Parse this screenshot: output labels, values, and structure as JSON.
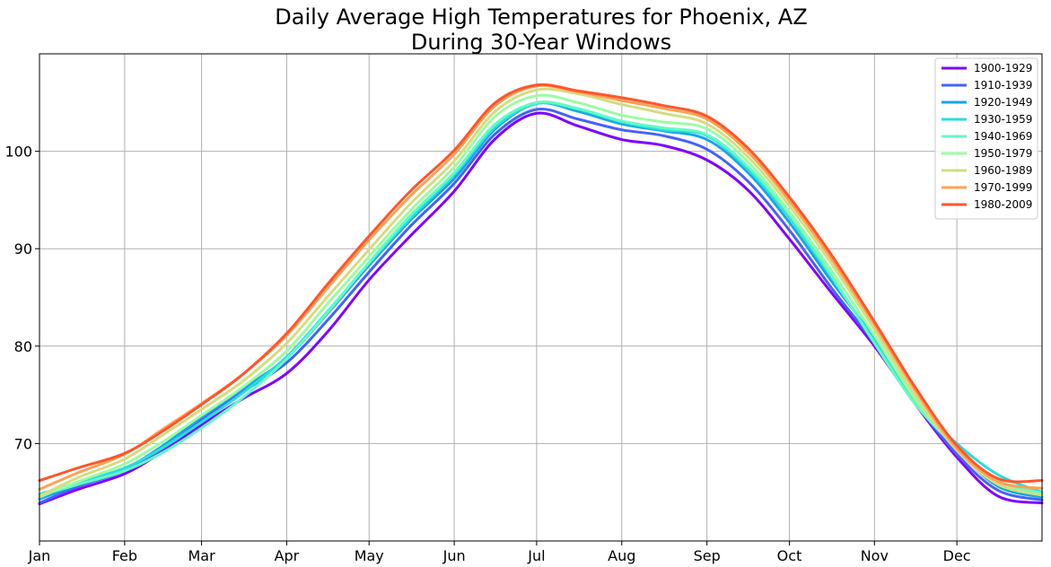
{
  "chart_data": {
    "type": "line",
    "title_lines": [
      "Daily Average High Temperatures for Phoenix, AZ",
      "During 30-Year Windows"
    ],
    "xlabel": "",
    "ylabel": "",
    "x_unit": "day of year",
    "xlim": [
      1,
      366
    ],
    "ylim": [
      60,
      110
    ],
    "x_ticks": [
      {
        "label": "Jan",
        "day": 1
      },
      {
        "label": "Feb",
        "day": 32
      },
      {
        "label": "Mar",
        "day": 60
      },
      {
        "label": "Apr",
        "day": 91
      },
      {
        "label": "May",
        "day": 121
      },
      {
        "label": "Jun",
        "day": 152
      },
      {
        "label": "Jul",
        "day": 182
      },
      {
        "label": "Aug",
        "day": 213
      },
      {
        "label": "Sep",
        "day": 244
      },
      {
        "label": "Oct",
        "day": 274
      },
      {
        "label": "Nov",
        "day": 305
      },
      {
        "label": "Dec",
        "day": 335
      }
    ],
    "y_ticks": [
      70,
      80,
      90,
      100
    ],
    "grid": true,
    "legend_position": "top-right",
    "x": [
      1,
      15,
      32,
      46,
      60,
      75,
      91,
      106,
      121,
      136,
      152,
      167,
      182,
      197,
      213,
      228,
      244,
      259,
      274,
      289,
      305,
      320,
      335,
      350,
      366
    ],
    "series": [
      {
        "name": "1900-1929",
        "color": "#7f00ff",
        "values": [
          63.8,
          65.3,
          66.9,
          69.2,
          71.9,
          74.6,
          77.2,
          81.5,
          86.8,
          91.3,
          95.9,
          101.3,
          103.9,
          102.6,
          101.2,
          100.6,
          99.1,
          96.0,
          91.0,
          85.6,
          80.0,
          74.0,
          68.6,
          64.6,
          63.9
        ]
      },
      {
        "name": "1910-1939",
        "color": "#4562fa",
        "values": [
          63.9,
          65.6,
          67.2,
          69.5,
          72.4,
          75.3,
          78.3,
          82.7,
          87.6,
          92.3,
          96.7,
          101.8,
          104.3,
          103.3,
          102.2,
          101.6,
          100.2,
          96.9,
          91.9,
          86.1,
          80.3,
          74.2,
          68.9,
          65.2,
          64.2
        ]
      },
      {
        "name": "1920-1949",
        "color": "#18a4e8",
        "values": [
          64.3,
          65.8,
          67.4,
          69.8,
          72.7,
          75.6,
          78.8,
          83.4,
          88.3,
          92.9,
          97.2,
          102.3,
          104.9,
          104.1,
          102.8,
          102.1,
          101.2,
          97.8,
          92.7,
          86.8,
          80.8,
          74.4,
          69.4,
          65.6,
          64.5
        ]
      },
      {
        "name": "1930-1959",
        "color": "#2adddd",
        "values": [
          64.8,
          66.0,
          67.5,
          69.6,
          72.2,
          75.2,
          78.9,
          83.6,
          88.5,
          93.1,
          97.6,
          102.5,
          104.9,
          104.3,
          103.0,
          102.2,
          101.6,
          98.1,
          93.2,
          87.2,
          80.6,
          74.3,
          70.0,
          66.8,
          65.0
        ]
      },
      {
        "name": "1940-1969",
        "color": "#62fbc3",
        "values": [
          64.7,
          65.8,
          67.2,
          69.1,
          71.6,
          74.7,
          78.7,
          83.5,
          88.6,
          93.4,
          97.8,
          102.8,
          105.0,
          104.4,
          103.1,
          102.4,
          101.7,
          98.4,
          93.5,
          87.4,
          80.3,
          74.0,
          69.6,
          66.2,
          64.9
        ]
      },
      {
        "name": "1950-1979",
        "color": "#9cfba4",
        "values": [
          64.5,
          66.1,
          67.9,
          70.2,
          72.9,
          75.8,
          79.5,
          84.4,
          89.2,
          93.9,
          98.4,
          103.6,
          105.7,
          105.0,
          103.7,
          103.0,
          102.3,
          98.9,
          93.8,
          87.9,
          81.1,
          74.5,
          69.4,
          65.9,
          64.7
        ]
      },
      {
        "name": "1960-1989",
        "color": "#d4dd80",
        "values": [
          64.6,
          66.5,
          68.4,
          70.9,
          73.5,
          76.4,
          80.3,
          85.1,
          89.9,
          94.6,
          99.0,
          104.1,
          106.3,
          105.9,
          104.8,
          103.9,
          102.8,
          99.4,
          94.4,
          88.6,
          81.7,
          74.9,
          69.3,
          65.8,
          64.7
        ]
      },
      {
        "name": "1970-1999",
        "color": "#ffa256",
        "values": [
          65.3,
          67.0,
          68.9,
          71.5,
          74.1,
          77.1,
          81.1,
          86.0,
          90.9,
          95.4,
          99.7,
          104.7,
          106.7,
          106.1,
          105.2,
          104.4,
          103.3,
          99.9,
          94.9,
          89.1,
          82.2,
          75.4,
          69.5,
          66.1,
          65.4
        ]
      },
      {
        "name": "1980-2009",
        "color": "#ff562c",
        "values": [
          66.2,
          67.5,
          69.0,
          71.3,
          74.0,
          77.1,
          81.3,
          86.4,
          91.3,
          95.9,
          100.1,
          105.0,
          106.8,
          106.2,
          105.5,
          104.7,
          103.6,
          100.3,
          95.3,
          89.5,
          82.5,
          75.7,
          69.8,
          66.4,
          66.2
        ]
      }
    ]
  }
}
